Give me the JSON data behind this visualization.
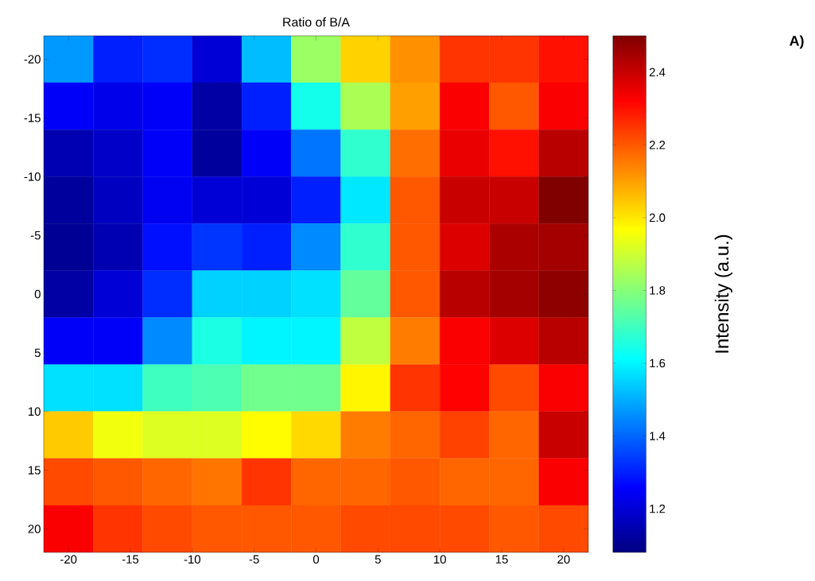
{
  "chart_data": {
    "type": "heatmap",
    "title": "Ratio of B/A",
    "clabel": "Intensity (a.u.)",
    "annotations": [
      "A)"
    ],
    "x": [
      -20,
      -16,
      -12,
      -8,
      -4,
      0,
      4,
      8,
      12,
      16,
      20
    ],
    "y": [
      -20,
      -16,
      -12,
      -8,
      -4,
      0,
      4,
      8,
      12,
      16,
      20
    ],
    "xlim": [
      -22,
      22
    ],
    "ylim": [
      22,
      -22
    ],
    "xticks": [
      -20,
      -15,
      -10,
      -5,
      0,
      5,
      10,
      15,
      20
    ],
    "yticks": [
      -20,
      -15,
      -10,
      -5,
      0,
      5,
      10,
      15,
      20
    ],
    "clim": [
      1.08,
      2.5
    ],
    "cticks": [
      1.2,
      1.4,
      1.6,
      1.8,
      {
        "value": 2,
        "label": "2.0"
      },
      2.2,
      2.4
    ],
    "cells": [
      [
        1.47,
        1.3,
        1.32,
        1.2,
        1.52,
        1.83,
        2.03,
        2.12,
        2.25,
        2.25,
        2.3
      ],
      [
        1.25,
        1.23,
        1.25,
        1.13,
        1.3,
        1.64,
        1.85,
        2.1,
        2.33,
        2.2,
        2.33
      ],
      [
        1.15,
        1.18,
        1.25,
        1.12,
        1.25,
        1.42,
        1.68,
        2.17,
        2.35,
        2.3,
        2.42
      ],
      [
        1.12,
        1.17,
        1.24,
        1.2,
        1.2,
        1.3,
        1.58,
        2.2,
        2.4,
        2.4,
        2.5
      ],
      [
        1.11,
        1.15,
        1.28,
        1.33,
        1.3,
        1.45,
        1.68,
        2.2,
        2.37,
        2.44,
        2.45
      ],
      [
        1.13,
        1.2,
        1.32,
        1.55,
        1.55,
        1.57,
        1.75,
        2.2,
        2.42,
        2.45,
        2.48
      ],
      [
        1.25,
        1.25,
        1.45,
        1.65,
        1.6,
        1.6,
        1.88,
        2.15,
        2.33,
        2.37,
        2.42
      ],
      [
        1.57,
        1.57,
        1.7,
        1.72,
        1.77,
        1.77,
        1.98,
        2.25,
        2.32,
        2.22,
        2.33
      ],
      [
        2.04,
        1.95,
        1.92,
        1.92,
        1.97,
        2.02,
        2.15,
        2.18,
        2.23,
        2.18,
        2.4
      ],
      [
        2.22,
        2.2,
        2.18,
        2.16,
        2.25,
        2.18,
        2.18,
        2.2,
        2.18,
        2.18,
        2.33
      ],
      [
        2.33,
        2.25,
        2.22,
        2.2,
        2.2,
        2.2,
        2.22,
        2.22,
        2.22,
        2.2,
        2.22
      ]
    ]
  }
}
